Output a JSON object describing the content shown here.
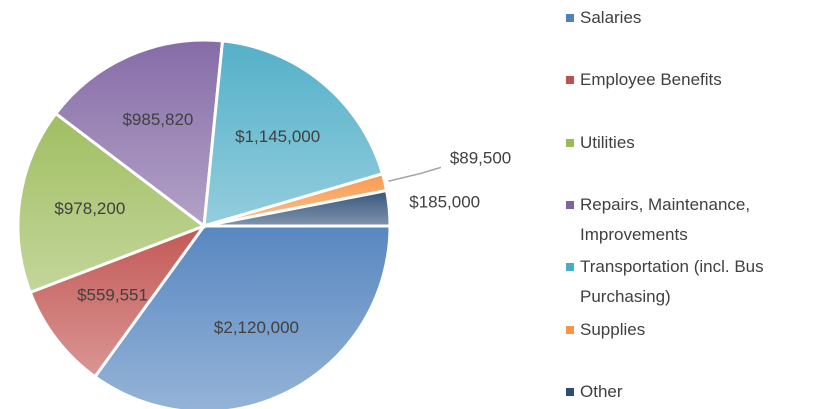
{
  "chart_data": {
    "type": "pie",
    "categories": [
      "Salaries",
      "Employee Benefits",
      "Utilities",
      "Repairs, Maintenance, Improvements",
      "Transportation (incl. Bus Purchasing)",
      "Supplies",
      "Other"
    ],
    "values": [
      2120000,
      559551,
      978200,
      985820,
      1145000,
      89500,
      185000
    ],
    "value_labels": [
      "$2,120,000",
      "$559,551",
      "$978,200",
      "$985,820",
      "$1,145,000",
      "$89,500",
      "$185,000"
    ],
    "colors": [
      "#4f81bd",
      "#c0504d",
      "#9bbb59",
      "#8064a2",
      "#4bacc6",
      "#f79646",
      "#2c4d75"
    ],
    "legend": "right"
  }
}
